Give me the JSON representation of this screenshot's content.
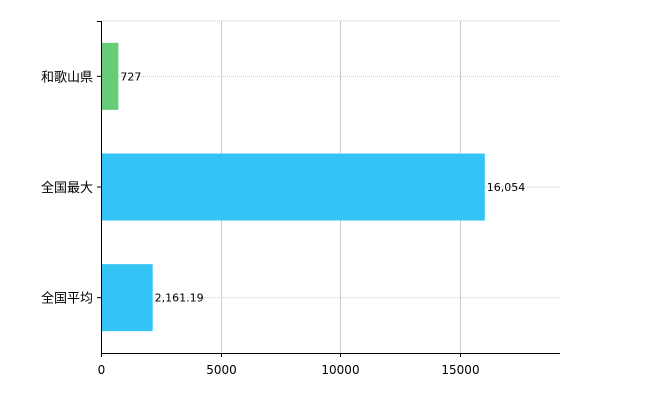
{
  "chart_data": {
    "type": "bar",
    "orientation": "horizontal",
    "categories": [
      "和歌山県",
      "全国最大",
      "全国平均"
    ],
    "values": [
      727,
      16054,
      2161.19
    ],
    "data_labels": [
      "727",
      "16,054",
      "2,161.19"
    ],
    "bar_colors": [
      "#66cc77",
      "#33c3f5",
      "#33c3f5"
    ],
    "x_ticks": [
      0,
      5000,
      10000,
      15000
    ],
    "x_tick_labels": [
      "0",
      "5000",
      "10000",
      "15000"
    ],
    "xlim": [
      0,
      19200
    ],
    "grid": true,
    "title": "",
    "xlabel": "",
    "ylabel": ""
  }
}
